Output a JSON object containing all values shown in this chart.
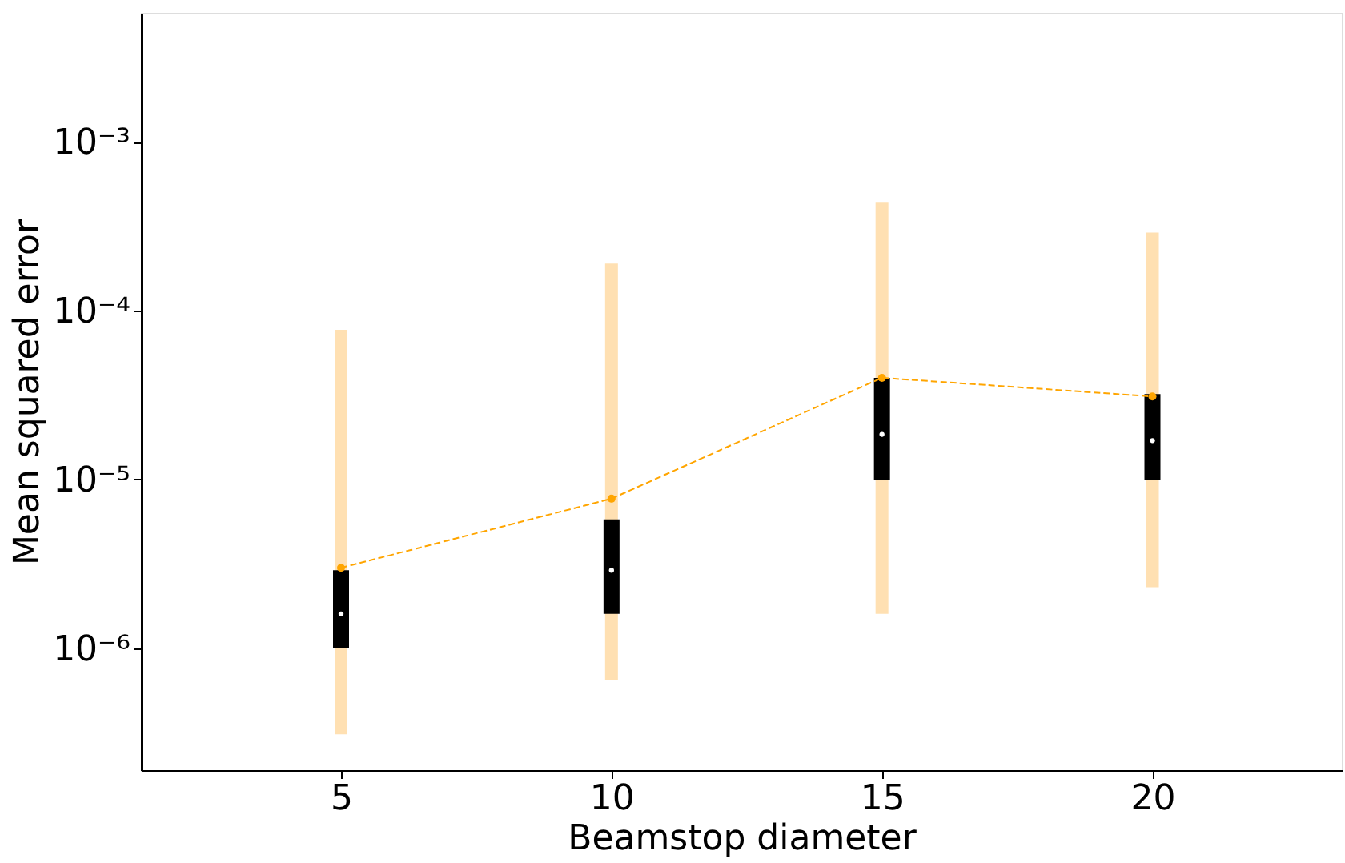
{
  "chart_data": {
    "type": "box",
    "xlabel": "Beamstop diameter",
    "ylabel": "Mean squared error",
    "log": "y",
    "grid": false,
    "xlim": [
      1.3,
      23.5
    ],
    "xticks": [
      5,
      10,
      15,
      20
    ],
    "x": [
      5,
      10,
      15,
      20
    ],
    "ylim": [
      1.9e-07,
      0.0058
    ],
    "yticks": [
      {
        "value": 1e-06,
        "label": "10⁻⁶"
      },
      {
        "value": 1e-05,
        "label": "10⁻⁵"
      },
      {
        "value": 0.0001,
        "label": "10⁻⁴"
      },
      {
        "value": 0.001,
        "label": "10⁻³"
      }
    ],
    "series": [
      {
        "color": "#000000",
        "boxes": [
          {
            "low": 3.1e-07,
            "q1": 1e-06,
            "median": 1.6e-06,
            "q3": 2.9e-06,
            "high": 7.7e-05
          },
          {
            "low": 6.5e-07,
            "q1": 1.6e-06,
            "median": 2.9e-06,
            "q3": 5.8e-06,
            "high": 0.00019
          },
          {
            "low": 1.6e-06,
            "q1": 1e-05,
            "median": 1.85e-05,
            "q3": 4e-05,
            "high": 0.00044
          },
          {
            "low": 2.3e-06,
            "q1": 1e-05,
            "median": 1.7e-05,
            "q3": 3.2e-05,
            "high": 0.00029
          }
        ]
      },
      {
        "type": "line",
        "color": "#ffa500",
        "values": [
          3e-06,
          7.7e-06,
          4e-05,
          3.1e-05
        ],
        "line_style": "dashed",
        "marker": "circle"
      }
    ]
  }
}
